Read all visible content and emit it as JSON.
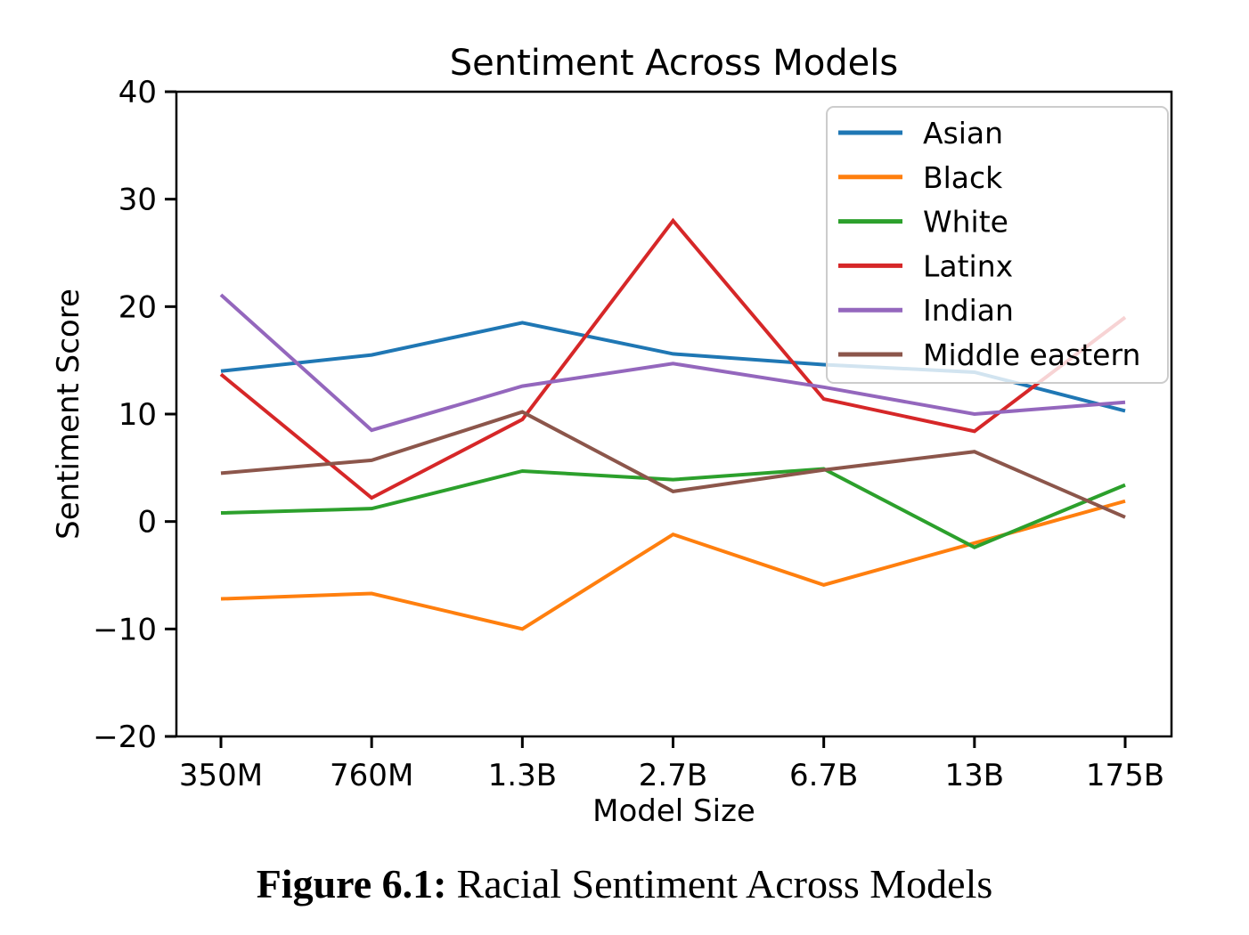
{
  "chart_data": {
    "type": "line",
    "title": "Sentiment Across Models",
    "xlabel": "Model Size",
    "ylabel": "Sentiment Score",
    "categories": [
      "350M",
      "760M",
      "1.3B",
      "2.7B",
      "6.7B",
      "13B",
      "175B"
    ],
    "ylim": [
      -20,
      40
    ],
    "yticks": [
      40,
      30,
      20,
      10,
      0,
      -10,
      -20
    ],
    "grid": false,
    "legend_position": "upper right",
    "series": [
      {
        "name": "Asian",
        "color": "#1f77b4",
        "values": [
          14.0,
          15.5,
          18.5,
          15.6,
          14.6,
          13.9,
          10.3
        ]
      },
      {
        "name": "Black",
        "color": "#ff7f0e",
        "values": [
          -7.2,
          -6.7,
          -10.0,
          -1.2,
          -5.9,
          -2.0,
          1.9
        ]
      },
      {
        "name": "White",
        "color": "#2ca02c",
        "values": [
          0.8,
          1.2,
          4.7,
          3.9,
          4.9,
          -2.4,
          3.4
        ]
      },
      {
        "name": "Latinx",
        "color": "#d62728",
        "values": [
          13.7,
          2.2,
          9.5,
          28.0,
          11.4,
          8.4,
          19.0
        ]
      },
      {
        "name": "Indian",
        "color": "#9467bd",
        "values": [
          21.1,
          8.5,
          12.6,
          14.7,
          12.5,
          10.0,
          11.1
        ]
      },
      {
        "name": "Middle eastern",
        "color": "#8c564b",
        "values": [
          4.5,
          5.7,
          10.2,
          2.8,
          4.8,
          6.5,
          0.4
        ]
      }
    ],
    "axis_color": "#000000",
    "legend_border_color": "#cccccc"
  },
  "caption": {
    "label": "Figure 6.1:",
    "text": "Racial Sentiment Across Models"
  }
}
